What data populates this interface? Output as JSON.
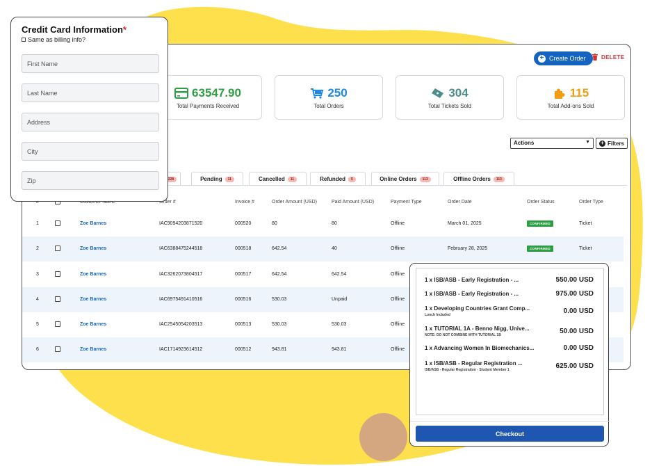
{
  "colors": {
    "blob": "#fde04c",
    "accent": "#1565c0",
    "danger": "#d32f2f",
    "confirmed": "#2e9e44",
    "checkout": "#1f56b2"
  },
  "toolbar": {
    "create_label": "Create Order",
    "delete_label": "DELETE"
  },
  "stats": [
    {
      "value": "63547.90",
      "label": "Total Payments Received",
      "icon": "credit-card-icon",
      "color": "#2e9e44"
    },
    {
      "value": "250",
      "label": "Total Orders",
      "icon": "shopping-cart-icon",
      "color": "#1e88e5"
    },
    {
      "value": "304",
      "label": "Total Tickets Sold",
      "icon": "ticket-icon",
      "color": "#4c8c8a"
    },
    {
      "value": "115",
      "label": "Total Add-ons Sold",
      "icon": "puzzle-icon",
      "color": "#f39c12"
    }
  ],
  "actions": {
    "select_label": "Actions",
    "filters_label": "Filters"
  },
  "tabs": [
    {
      "label": "",
      "count": "228"
    },
    {
      "label": "Pending",
      "count": "11"
    },
    {
      "label": "Cancelled",
      "count": "11"
    },
    {
      "label": "Refunded",
      "count": "5"
    },
    {
      "label": "Online Orders",
      "count": "113"
    },
    {
      "label": "Offline Orders",
      "count": "113"
    }
  ],
  "table": {
    "headers": [
      "#",
      "",
      "Customer Name",
      "Order #",
      "Invoice #",
      "Order Amount (USD)",
      "Paid Amount (USD)",
      "Payment Type",
      "Order Date",
      "Order Status",
      "Order Type"
    ],
    "rows": [
      {
        "n": "1",
        "name": "Zoe Barnes",
        "order": "IAC9094203871520",
        "invoice": "000520",
        "amount": "80",
        "paid": "80",
        "ptype": "Offline",
        "date": "March 01, 2025",
        "status": "CONFIRMED",
        "otype": "Ticket"
      },
      {
        "n": "2",
        "name": "Zoe Barnes",
        "order": "IAC6388475244518",
        "invoice": "000518",
        "amount": "642.54",
        "paid": "40",
        "ptype": "Offline",
        "date": "February 28, 2025",
        "status": "CONFIRMED",
        "otype": "Ticket"
      },
      {
        "n": "3",
        "name": "Zoe Barnes",
        "order": "IAC3262073804517",
        "invoice": "000517",
        "amount": "642.54",
        "paid": "642.54",
        "ptype": "Offline",
        "date": "",
        "status": "",
        "otype": ""
      },
      {
        "n": "4",
        "name": "Zoe Barnes",
        "order": "IAC6975491410516",
        "invoice": "000516",
        "amount": "530.03",
        "paid": "Unpaid",
        "ptype": "Offline",
        "date": "",
        "status": "",
        "otype": ""
      },
      {
        "n": "5",
        "name": "Zoe Barnes",
        "order": "IAC2545054203513",
        "invoice": "000513",
        "amount": "530.03",
        "paid": "530.03",
        "ptype": "Offline",
        "date": "",
        "status": "",
        "otype": ""
      },
      {
        "n": "6",
        "name": "Zoe Barnes",
        "order": "IAC1714923614512",
        "invoice": "000512",
        "amount": "943.81",
        "paid": "943.81",
        "ptype": "Offline",
        "date": "",
        "status": "",
        "otype": ""
      }
    ]
  },
  "credit_card": {
    "title": "Credit Card Information",
    "required_mark": "*",
    "same_as_billing": "Same as billing info?",
    "fields": [
      "First Name",
      "Last Name",
      "Address",
      "City",
      "Zip"
    ]
  },
  "cart": {
    "items": [
      {
        "title": "1 x ISB/ASB - Early Registration - ...",
        "sub": "",
        "price": "550.00 USD"
      },
      {
        "title": "1 x ISB/ASB - Early Registration - ...",
        "sub": "",
        "price": "975.00 USD"
      },
      {
        "title": "1 x Developing Countries Grant Comp...",
        "sub": "Lunch Included",
        "price": "0.00 USD"
      },
      {
        "title": "1 x TUTORIAL 1A - Benno Nigg, Unive...",
        "sub": "NOTE: DO NOT COMBINE WITH TUTORIAL 1B",
        "price": "50.00 USD"
      },
      {
        "title": "1 x Advancing Women In Biomechanics...",
        "sub": "",
        "price": "0.00 USD"
      },
      {
        "title": "1 x ISB/ASB - Regular Registration ...",
        "sub": "ISB/ASB - Regular Registration - Student Member 1",
        "price": "625.00 USD"
      }
    ],
    "checkout_label": "Checkout"
  }
}
